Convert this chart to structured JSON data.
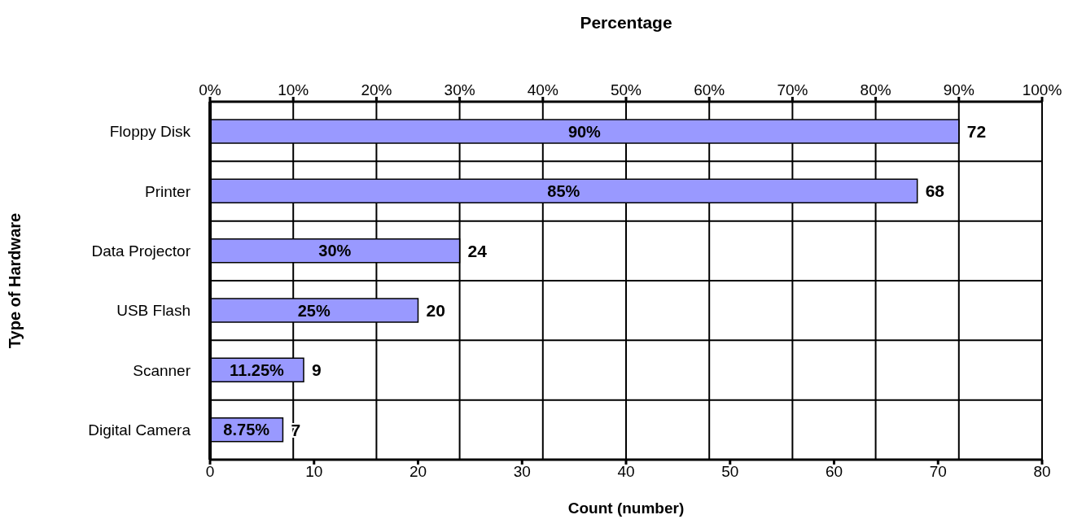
{
  "chart_data": {
    "type": "bar",
    "orientation": "horizontal",
    "xlabel": "Count (number)",
    "x2label": "Percentage",
    "ylabel": "Type of Hardware",
    "categories": [
      "Floppy Disk",
      "Printer",
      "Data Projector",
      "USB Flash ",
      "Scanner",
      "Digital Camera"
    ],
    "values": [
      72,
      68,
      24,
      20,
      9,
      7
    ],
    "color": "#9999ff",
    "data_labels": true,
    "xlim": [
      0,
      80
    ],
    "xticks": [
      0,
      10,
      20,
      30,
      40,
      50,
      60,
      70,
      80
    ],
    "x2lim": [
      0,
      100
    ],
    "x2ticks": [
      {
        "value": 0,
        "label": "0%"
      },
      {
        "value": 10,
        "label": "10%"
      },
      {
        "value": 20,
        "label": "20%"
      },
      {
        "value": 30,
        "label": "30%"
      },
      {
        "value": 40,
        "label": "40%"
      },
      {
        "value": 50,
        "label": "50%"
      },
      {
        "value": 60,
        "label": "60%"
      },
      {
        "value": 70,
        "label": "70%"
      },
      {
        "value": 80,
        "label": "80%"
      },
      {
        "value": 90,
        "label": "90%"
      },
      {
        "value": 100,
        "label": "100%"
      }
    ],
    "grid": true,
    "annotations": [
      "90%",
      "85%",
      "30%",
      "25%",
      "11.25%",
      "8.75%"
    ]
  }
}
